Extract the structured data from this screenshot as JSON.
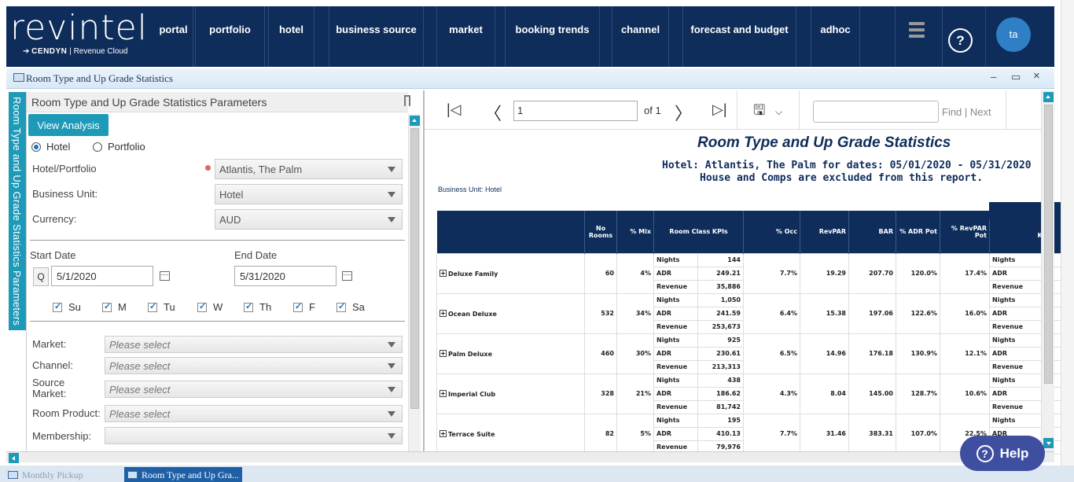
{
  "app": {
    "logo_text": "revintel",
    "logo_sub_brand": "CENDYN",
    "logo_sub_text": "Revenue Cloud",
    "nav": [
      "portal",
      "portfolio",
      "hotel",
      "business source",
      "market",
      "booking trends",
      "channel",
      "forecast and budget",
      "adhoc"
    ],
    "help_icon": "?",
    "avatar": "ta"
  },
  "window": {
    "title": "Room Type and Up Grade Statistics",
    "controls": [
      "–",
      "▭",
      "×"
    ]
  },
  "params": {
    "side_tab": "Room Type and Up Grade Statistics Parameters",
    "header": "Room Type and Up Grade Statistics Parameters",
    "view_button": "View Analysis",
    "radio_hotel": "Hotel",
    "radio_portfolio": "Portfolio",
    "hotel_label": "Hotel/Portfolio",
    "hotel_value": "Atlantis, The Palm",
    "bu_label": "Business Unit:",
    "bu_value": "Hotel",
    "currency_label": "Currency:",
    "currency_value": "AUD",
    "start_label": "Start Date",
    "start_value": "5/1/2020",
    "end_label": "End Date",
    "end_value": "5/31/2020",
    "q_button": "Q",
    "days": [
      "Su",
      "M",
      "Tu",
      "W",
      "Th",
      "F",
      "Sa"
    ],
    "market_label": "Market:",
    "channel_label": "Channel:",
    "source_label": "Source Market:",
    "room_label": "Room Product:",
    "membership_label": "Membership:",
    "placeholder": "Please select"
  },
  "toolbar": {
    "page": "1",
    "of": "of 1",
    "find_next": "Find | Next"
  },
  "report": {
    "title": "Room Type and Up Grade Statistics",
    "subtitle1": "Hotel: Atlantis, The Palm for dates: 05/01/2020 - 05/31/2020",
    "subtitle2": "House and Comps are excluded from this report.",
    "business_unit": "Business Unit: Hotel",
    "headers": [
      "",
      "No Rooms",
      "% Mix",
      "Room Class KPIs",
      "",
      "% Occ",
      "RevPAR",
      "BAR",
      "% ADR Pot",
      "% RevPAR Pot",
      "KPI"
    ],
    "rows": [
      {
        "name": "Deluxe Family",
        "rooms": "60",
        "mix": "4%",
        "nights": "144",
        "adr": "249.21",
        "revenue": "35,886",
        "occ": "7.7%",
        "revpar": "19.29",
        "bar": "207.70",
        "adrpot": "120.0%",
        "revparpot": "17.4%"
      },
      {
        "name": "Ocean Deluxe",
        "rooms": "532",
        "mix": "34%",
        "nights": "1,050",
        "adr": "241.59",
        "revenue": "253,673",
        "occ": "6.4%",
        "revpar": "15.38",
        "bar": "197.06",
        "adrpot": "122.6%",
        "revparpot": "16.0%"
      },
      {
        "name": "Palm Deluxe",
        "rooms": "460",
        "mix": "30%",
        "nights": "925",
        "adr": "230.61",
        "revenue": "213,313",
        "occ": "6.5%",
        "revpar": "14.96",
        "bar": "176.18",
        "adrpot": "130.9%",
        "revparpot": "12.1%"
      },
      {
        "name": "Imperial Club",
        "rooms": "328",
        "mix": "21%",
        "nights": "438",
        "adr": "186.62",
        "revenue": "81,742",
        "occ": "4.3%",
        "revpar": "8.04",
        "bar": "145.00",
        "adrpot": "128.7%",
        "revparpot": "10.6%"
      },
      {
        "name": "Terrace Suite",
        "rooms": "82",
        "mix": "5%",
        "nights": "195",
        "adr": "410.13",
        "revenue": "79,976",
        "occ": "7.7%",
        "revpar": "31.46",
        "bar": "383.31",
        "adrpot": "107.0%",
        "revparpot": "22.5%"
      }
    ],
    "kpi_labels": [
      "Nights",
      "ADR",
      "Revenue"
    ]
  },
  "taskbar": [
    "Monthly Pickup",
    "Room Type and Up Gra..."
  ],
  "help_button": "Help"
}
